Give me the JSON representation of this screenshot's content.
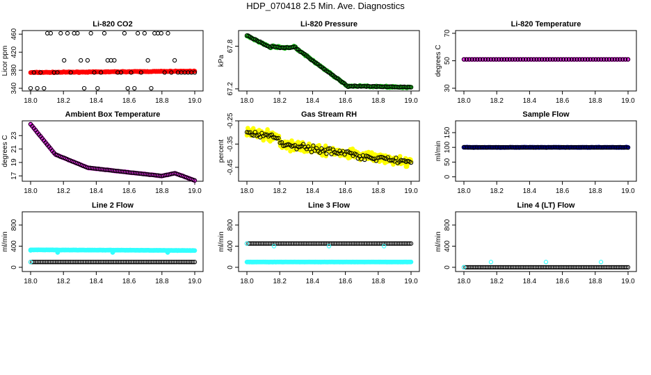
{
  "page": {
    "title": "HDP_070418  2.5 Min. Ave. Diagnostics"
  },
  "chart_data": [
    {
      "id": "co2",
      "type": "scatter",
      "title": "Li-820 CO2",
      "ylabel": "Licor ppm",
      "xlim": [
        18.0,
        19.0
      ],
      "ylim": [
        334,
        468
      ],
      "xticks": [
        "18.0",
        "18.2",
        "18.4",
        "18.6",
        "18.8",
        "19.0"
      ],
      "yticks": [
        {
          "v": 340,
          "label": "340"
        },
        {
          "v": 380,
          "label": "380"
        },
        {
          "v": 420,
          "label": "420"
        },
        {
          "v": 460,
          "label": "460"
        }
      ],
      "series": [
        {
          "name": "fill",
          "style": "filled",
          "color": "#ff0000",
          "n": 240,
          "shape": "line",
          "params": {
            "a": 375,
            "b": 378,
            "noise": 1.2
          }
        },
        {
          "name": "avg",
          "style": "open",
          "color": "#000000",
          "n": 50,
          "shape": "jump",
          "params": {
            "base": 375,
            "levels": [
              340,
              375,
              402,
              462
            ],
            "seed": 11
          }
        }
      ]
    },
    {
      "id": "pressure",
      "type": "scatter",
      "title": "Li-820 Pressure",
      "ylabel": "kPa",
      "xlim": [
        18.0,
        19.0
      ],
      "ylim": [
        67.17,
        68.02
      ],
      "xticks": [
        "18.0",
        "18.2",
        "18.4",
        "18.6",
        "18.8",
        "19.0"
      ],
      "yticks": [
        {
          "v": 67.2,
          "label": "67.2"
        },
        {
          "v": 67.8,
          "label": "67.8"
        }
      ],
      "series": [
        {
          "name": "fill",
          "style": "filled",
          "color": "#22cc22",
          "n": 200,
          "shape": "pressure",
          "params": {
            "noise": 0.015
          }
        },
        {
          "name": "avg",
          "style": "open",
          "color": "#000000",
          "n": 100,
          "shape": "pressure",
          "params": {
            "noise": 0.01
          }
        }
      ]
    },
    {
      "id": "temp",
      "type": "scatter",
      "title": "Li-820 Temperature",
      "ylabel": "degrees C",
      "xlim": [
        18.0,
        19.0
      ],
      "ylim": [
        28,
        72
      ],
      "xticks": [
        "18.0",
        "18.2",
        "18.4",
        "18.6",
        "18.8",
        "19.0"
      ],
      "yticks": [
        {
          "v": 30,
          "label": "30"
        },
        {
          "v": 50,
          "label": "50"
        },
        {
          "v": 70,
          "label": "70"
        }
      ],
      "series": [
        {
          "name": "fill",
          "style": "filled",
          "color": "#ff33ff",
          "n": 200,
          "shape": "line",
          "params": {
            "a": 51,
            "b": 51,
            "noise": 0
          }
        },
        {
          "name": "avg",
          "style": "open",
          "color": "#000000",
          "n": 62,
          "shape": "line",
          "params": {
            "a": 51,
            "b": 51,
            "noise": 0
          }
        }
      ]
    },
    {
      "id": "boxtemp",
      "type": "scatter",
      "title": "Ambient Box Temperature",
      "ylabel": "degrees C",
      "xlim": [
        18.0,
        19.0
      ],
      "ylim": [
        16.2,
        25.2
      ],
      "xticks": [
        "18.0",
        "18.2",
        "18.4",
        "18.6",
        "18.8",
        "19.0"
      ],
      "yticks": [
        {
          "v": 17,
          "label": "17"
        },
        {
          "v": 19,
          "label": "19"
        },
        {
          "v": 21,
          "label": "21"
        },
        {
          "v": 23,
          "label": "23"
        }
      ],
      "series": [
        {
          "name": "fill",
          "style": "filled",
          "color": "#ff33ff",
          "n": 200,
          "shape": "boxtemp",
          "params": {
            "noise": 0.05
          }
        },
        {
          "name": "avg",
          "style": "open",
          "color": "#000000",
          "n": 100,
          "shape": "boxtemp",
          "params": {
            "noise": 0.03
          }
        }
      ]
    },
    {
      "id": "rh",
      "type": "scatter",
      "title": "Gas Stream RH",
      "ylabel": "percent",
      "xlim": [
        18.0,
        19.0
      ],
      "ylim": [
        -0.51,
        -0.25
      ],
      "xticks": [
        "18.0",
        "18.2",
        "18.4",
        "18.6",
        "18.8",
        "19.0"
      ],
      "yticks": [
        {
          "v": -0.25,
          "label": "-0.25"
        },
        {
          "v": -0.35,
          "label": "-0.35"
        },
        {
          "v": -0.45,
          "label": "-0.45"
        }
      ],
      "series": [
        {
          "name": "fill",
          "style": "filled",
          "color": "#ffff00",
          "n": 360,
          "shape": "rh",
          "params": {
            "noise": 0.028
          }
        },
        {
          "name": "avg",
          "style": "open",
          "color": "#000000",
          "n": 100,
          "shape": "rh",
          "params": {
            "noise": 0.02
          }
        }
      ]
    },
    {
      "id": "sampleflow",
      "type": "scatter",
      "title": "Sample Flow",
      "ylabel": "ml/min",
      "xlim": [
        18.0,
        19.0
      ],
      "ylim": [
        -15,
        190
      ],
      "xticks": [
        "18.0",
        "18.2",
        "18.4",
        "18.6",
        "18.8",
        "19.0"
      ],
      "yticks": [
        {
          "v": 0,
          "label": "0"
        },
        {
          "v": 50,
          "label": "50"
        },
        {
          "v": 100,
          "label": "100"
        },
        {
          "v": 150,
          "label": "150"
        }
      ],
      "series": [
        {
          "name": "fill",
          "style": "filled",
          "color": "#0000cc",
          "n": 200,
          "shape": "line",
          "params": {
            "a": 100,
            "b": 100,
            "noise": 1
          }
        },
        {
          "name": "avg",
          "style": "open",
          "color": "#000000",
          "n": 100,
          "shape": "line",
          "params": {
            "a": 100,
            "b": 100,
            "noise": 0.8
          }
        }
      ]
    },
    {
      "id": "line2",
      "type": "scatter",
      "title": "Line 2 Flow",
      "ylabel": "ml/min",
      "xlim": [
        18.0,
        19.0
      ],
      "ylim": [
        -80,
        1050
      ],
      "xticks": [
        "18.0",
        "18.2",
        "18.4",
        "18.6",
        "18.8",
        "19.0"
      ],
      "yticks": [
        {
          "v": 0,
          "label": "0"
        },
        {
          "v": 400,
          "label": "400"
        },
        {
          "v": 800,
          "label": "800"
        }
      ],
      "series": [
        {
          "name": "high",
          "style": "filled",
          "color": "#33ffff",
          "n": 240,
          "shape": "line",
          "params": {
            "a": 330,
            "b": 318,
            "noise": 4
          }
        },
        {
          "name": "highavg",
          "style": "filled",
          "color": "#33ffff",
          "n": 4,
          "shape": "points",
          "params": {
            "pts": [
              [
                18.0,
                320
              ],
              [
                18.165,
                280
              ],
              [
                18.5,
                280
              ],
              [
                18.835,
                280
              ]
            ]
          }
        },
        {
          "name": "low",
          "style": "open",
          "color": "#000000",
          "n": 100,
          "shape": "line",
          "params": {
            "a": 100,
            "b": 100,
            "noise": 0
          }
        },
        {
          "name": "lowc",
          "style": "open",
          "color": "#33ffff",
          "n": 1,
          "shape": "points",
          "params": {
            "pts": [
              [
                18.0,
                100
              ]
            ]
          }
        }
      ]
    },
    {
      "id": "line3",
      "type": "scatter",
      "title": "Line 3 Flow",
      "ylabel": "ml/min",
      "xlim": [
        18.0,
        19.0
      ],
      "ylim": [
        -80,
        1050
      ],
      "xticks": [
        "18.0",
        "18.2",
        "18.4",
        "18.6",
        "18.8",
        "19.0"
      ],
      "yticks": [
        {
          "v": 0,
          "label": "0"
        },
        {
          "v": 400,
          "label": "400"
        },
        {
          "v": 800,
          "label": "800"
        }
      ],
      "series": [
        {
          "name": "low",
          "style": "filled",
          "color": "#33ffff",
          "n": 240,
          "shape": "line",
          "params": {
            "a": 100,
            "b": 100,
            "noise": 2
          }
        },
        {
          "name": "high",
          "style": "open",
          "color": "#000000",
          "n": 100,
          "shape": "line",
          "params": {
            "a": 450,
            "b": 450,
            "noise": 0
          }
        },
        {
          "name": "highc",
          "style": "open",
          "color": "#33ffff",
          "n": 4,
          "shape": "points",
          "params": {
            "pts": [
              [
                18.0,
                450
              ],
              [
                18.165,
                400
              ],
              [
                18.5,
                400
              ],
              [
                18.835,
                400
              ]
            ]
          }
        }
      ]
    },
    {
      "id": "line4",
      "type": "scatter",
      "title": "Line 4 (LT) Flow",
      "ylabel": "ml/min",
      "xlim": [
        18.0,
        19.0
      ],
      "ylim": [
        -80,
        1050
      ],
      "xticks": [
        "18.0",
        "18.2",
        "18.4",
        "18.6",
        "18.8",
        "19.0"
      ],
      "yticks": [
        {
          "v": 0,
          "label": "0"
        },
        {
          "v": 400,
          "label": "400"
        },
        {
          "v": 800,
          "label": "800"
        }
      ],
      "series": [
        {
          "name": "base",
          "style": "open",
          "color": "#000000",
          "n": 100,
          "shape": "line",
          "params": {
            "a": 0,
            "b": 0,
            "noise": 0
          }
        },
        {
          "name": "spikes",
          "style": "open",
          "color": "#33ffff",
          "n": 4,
          "shape": "points",
          "params": {
            "pts": [
              [
                18.0,
                0
              ],
              [
                18.165,
                100
              ],
              [
                18.5,
                100
              ],
              [
                18.835,
                100
              ]
            ]
          }
        }
      ]
    }
  ]
}
